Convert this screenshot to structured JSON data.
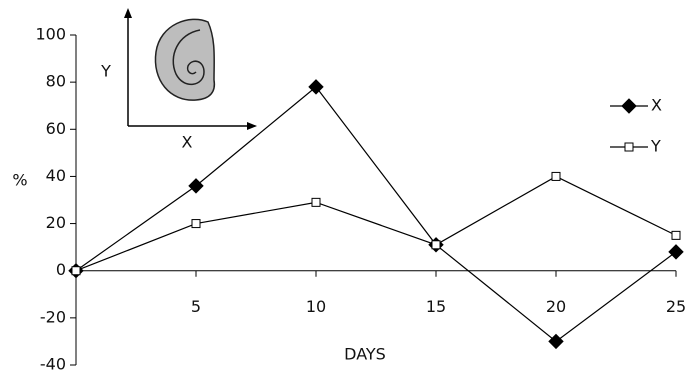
{
  "chart_data": {
    "type": "line",
    "x": [
      0,
      5,
      10,
      15,
      20,
      25
    ],
    "series": [
      {
        "name": "X",
        "color": "#000000",
        "marker": "diamond",
        "values": [
          0,
          36,
          78,
          11,
          -30,
          8
        ]
      },
      {
        "name": "Y",
        "color": "#000000",
        "marker": "square",
        "values": [
          0,
          20,
          29,
          11,
          40,
          15
        ]
      }
    ],
    "xlabel": "DAYS",
    "ylabel": "%",
    "xlim": [
      0,
      25
    ],
    "xticks": [
      5,
      10,
      15,
      20,
      25
    ],
    "ylim": [
      -40,
      100
    ],
    "yticks": [
      -40,
      -20,
      0,
      20,
      40,
      60,
      80,
      100
    ],
    "legend": "right",
    "inset": {
      "y_label": "Y",
      "x_label": "X"
    }
  }
}
